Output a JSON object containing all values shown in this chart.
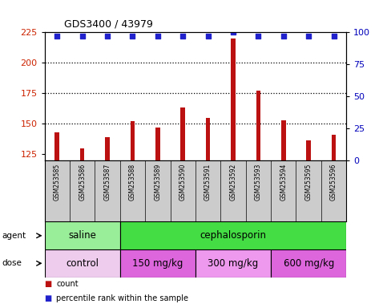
{
  "title": "GDS3400 / 43979",
  "samples": [
    "GSM253585",
    "GSM253586",
    "GSM253587",
    "GSM253588",
    "GSM253589",
    "GSM253590",
    "GSM253591",
    "GSM253592",
    "GSM253593",
    "GSM253594",
    "GSM253595",
    "GSM253596"
  ],
  "counts": [
    143,
    130,
    139,
    152,
    147,
    163,
    155,
    220,
    177,
    153,
    136,
    141
  ],
  "percentile_ranks": [
    97,
    97,
    97,
    97,
    97,
    97,
    97,
    100,
    97,
    97,
    97,
    97
  ],
  "ylim_left": [
    120,
    225
  ],
  "ylim_right": [
    0,
    100
  ],
  "yticks_left": [
    125,
    150,
    175,
    200,
    225
  ],
  "yticks_right": [
    0,
    25,
    50,
    75,
    100
  ],
  "bar_color": "#bb1111",
  "dot_color": "#2222cc",
  "bar_width": 0.18,
  "agent_groups": [
    {
      "label": "saline",
      "start": 0,
      "end": 2,
      "color": "#99ee99"
    },
    {
      "label": "cephalosporin",
      "start": 3,
      "end": 11,
      "color": "#44dd44"
    }
  ],
  "dose_groups": [
    {
      "label": "control",
      "start": 0,
      "end": 2,
      "color": "#eeccee"
    },
    {
      "label": "150 mg/kg",
      "start": 3,
      "end": 5,
      "color": "#dd66dd"
    },
    {
      "label": "300 mg/kg",
      "start": 6,
      "end": 8,
      "color": "#ee99ee"
    },
    {
      "label": "600 mg/kg",
      "start": 9,
      "end": 11,
      "color": "#dd66dd"
    }
  ],
  "tick_label_color_left": "#cc2200",
  "tick_label_color_right": "#0000bb",
  "grid_color": "#000000",
  "background_color": "#ffffff",
  "sample_box_color": "#cccccc",
  "legend_count_color": "#bb1111",
  "legend_dot_color": "#2222cc"
}
